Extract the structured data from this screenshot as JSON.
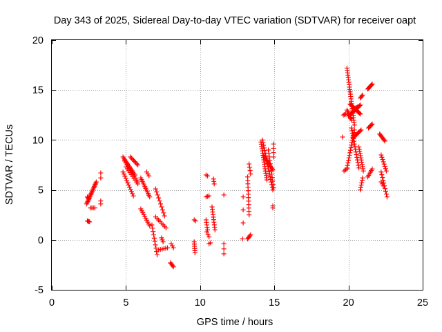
{
  "chart_data": {
    "type": "scatter",
    "title": "Day 343 of 2025, Sidereal Day-to-day VTEC variation (SDTVAR) for receiver oapt",
    "xlabel": "GPS time / hours",
    "ylabel": "SDTVAR / TECUs",
    "xlim": [
      0,
      25
    ],
    "ylim": [
      -5,
      20
    ],
    "xticks": [
      0,
      5,
      10,
      15,
      20,
      25
    ],
    "yticks": [
      -5,
      0,
      5,
      10,
      15,
      20
    ],
    "xtick_labels": [
      "0",
      "5",
      "10",
      "15",
      "20",
      "25"
    ],
    "ytick_labels": [
      "-5",
      "0",
      "5",
      "10",
      "15",
      "20"
    ],
    "grid": true,
    "marker": "+",
    "color": "#ff0000",
    "series": [
      {
        "name": "SDTVAR",
        "segments": [
          {
            "from": [
              2.35,
              3.6
            ],
            "to": [
              3.0,
              5.8
            ],
            "count": 20
          },
          {
            "from": [
              2.4,
              4.3
            ],
            "to": [
              2.5,
              4.1
            ],
            "count": 4
          },
          {
            "from": [
              2.4,
              1.9
            ],
            "to": [
              2.55,
              1.8
            ],
            "count": 4
          },
          {
            "from": [
              2.6,
              3.2
            ],
            "to": [
              2.9,
              3.2
            ],
            "count": 4
          },
          {
            "from": [
              3.3,
              6.7
            ],
            "to": [
              3.3,
              6.2
            ],
            "count": 2
          },
          {
            "from": [
              3.3,
              3.9
            ],
            "to": [
              3.3,
              3.6
            ],
            "count": 2
          },
          {
            "from": [
              4.8,
              8.3
            ],
            "to": [
              5.6,
              6.5
            ],
            "count": 14
          },
          {
            "from": [
              4.8,
              6.8
            ],
            "to": [
              5.5,
              4.4
            ],
            "count": 12
          },
          {
            "from": [
              4.9,
              7.9
            ],
            "to": [
              5.8,
              5.8
            ],
            "count": 12
          },
          {
            "from": [
              5.0,
              7.3
            ],
            "to": [
              5.8,
              5.6
            ],
            "count": 10
          },
          {
            "from": [
              5.3,
              8.3
            ],
            "to": [
              5.8,
              7.5
            ],
            "count": 8
          },
          {
            "from": [
              6.0,
              6.2
            ],
            "to": [
              6.6,
              4.3
            ],
            "count": 12
          },
          {
            "from": [
              6.0,
              3.1
            ],
            "to": [
              6.6,
              1.4
            ],
            "count": 10
          },
          {
            "from": [
              6.4,
              6.8
            ],
            "to": [
              6.55,
              6.4
            ],
            "count": 3
          },
          {
            "from": [
              6.75,
              1.5
            ],
            "to": [
              7.1,
              -1.5
            ],
            "count": 10
          },
          {
            "from": [
              7.0,
              2.3
            ],
            "to": [
              7.7,
              1.2
            ],
            "count": 8
          },
          {
            "from": [
              7.0,
              5.1
            ],
            "to": [
              7.6,
              2.4
            ],
            "count": 10
          },
          {
            "from": [
              7.2,
              -1.0
            ],
            "to": [
              7.8,
              -0.8
            ],
            "count": 6
          },
          {
            "from": [
              7.4,
              0.2
            ],
            "to": [
              7.5,
              -0.2
            ],
            "count": 3
          },
          {
            "from": [
              8.0,
              -2.3
            ],
            "to": [
              8.2,
              -2.7
            ],
            "count": 5
          },
          {
            "from": [
              8.05,
              -0.4
            ],
            "to": [
              8.2,
              -0.8
            ],
            "count": 3
          },
          {
            "from": [
              9.6,
              2.0
            ],
            "to": [
              9.7,
              1.9
            ],
            "count": 2
          },
          {
            "from": [
              9.6,
              -0.2
            ],
            "to": [
              9.65,
              -1.3
            ],
            "count": 6
          },
          {
            "from": [
              10.4,
              6.5
            ],
            "to": [
              10.5,
              6.4
            ],
            "count": 2
          },
          {
            "from": [
              10.4,
              4.3
            ],
            "to": [
              10.6,
              4.4
            ],
            "count": 3
          },
          {
            "from": [
              10.4,
              2.0
            ],
            "to": [
              10.5,
              1.0
            ],
            "count": 5
          },
          {
            "from": [
              10.45,
              0.8
            ],
            "to": [
              10.6,
              0.3
            ],
            "count": 3
          },
          {
            "from": [
              10.6,
              -0.4
            ],
            "to": [
              10.7,
              -0.3
            ],
            "count": 2
          },
          {
            "from": [
              10.8,
              3.3
            ],
            "to": [
              11.0,
              1.0
            ],
            "count": 10
          },
          {
            "from": [
              10.9,
              6.1
            ],
            "to": [
              10.95,
              5.6
            ],
            "count": 3
          },
          {
            "from": [
              11.6,
              4.5
            ],
            "to": [
              11.6,
              4.5
            ],
            "count": 1
          },
          {
            "from": [
              11.6,
              -0.4
            ],
            "to": [
              11.6,
              -1.4
            ],
            "count": 3
          },
          {
            "from": [
              12.9,
              4.3
            ],
            "to": [
              12.9,
              4.3
            ],
            "count": 1
          },
          {
            "from": [
              12.9,
              3.0
            ],
            "to": [
              12.9,
              3.0
            ],
            "count": 1
          },
          {
            "from": [
              12.85,
              0.1
            ],
            "to": [
              12.85,
              0.1
            ],
            "count": 1
          },
          {
            "from": [
              12.9,
              1.7
            ],
            "to": [
              12.9,
              1.7
            ],
            "count": 1
          },
          {
            "from": [
              13.2,
              6.3
            ],
            "to": [
              13.3,
              2.5
            ],
            "count": 12
          },
          {
            "from": [
              13.2,
              0.1
            ],
            "to": [
              13.4,
              0.5
            ],
            "count": 5
          },
          {
            "from": [
              13.3,
              7.6
            ],
            "to": [
              13.4,
              6.6
            ],
            "count": 4
          },
          {
            "from": [
              14.1,
              9.8
            ],
            "to": [
              14.5,
              6.0
            ],
            "count": 18
          },
          {
            "from": [
              14.2,
              10.0
            ],
            "to": [
              14.9,
              5.0
            ],
            "count": 20
          },
          {
            "from": [
              14.3,
              8.4
            ],
            "to": [
              14.9,
              7.0
            ],
            "count": 12
          },
          {
            "from": [
              14.6,
              9.0
            ],
            "to": [
              14.95,
              5.2
            ],
            "count": 12
          },
          {
            "from": [
              14.95,
              9.6
            ],
            "to": [
              14.95,
              8.3
            ],
            "count": 4
          },
          {
            "from": [
              14.9,
              3.4
            ],
            "to": [
              14.9,
              3.2
            ],
            "count": 2
          },
          {
            "from": [
              19.65,
              12.5
            ],
            "to": [
              19.8,
              12.6
            ],
            "count": 3
          },
          {
            "from": [
              19.6,
              10.3
            ],
            "to": [
              19.6,
              10.3
            ],
            "count": 1
          },
          {
            "from": [
              19.7,
              6.9
            ],
            "to": [
              19.9,
              7.1
            ],
            "count": 3
          },
          {
            "from": [
              19.9,
              17.2
            ],
            "to": [
              20.4,
              11.5
            ],
            "count": 25
          },
          {
            "from": [
              19.9,
              7.2
            ],
            "to": [
              20.4,
              11.0
            ],
            "count": 16
          },
          {
            "from": [
              19.9,
              13.0
            ],
            "to": [
              20.2,
              12.0
            ],
            "count": 8
          },
          {
            "from": [
              20.0,
              12.4
            ],
            "to": [
              20.8,
              13.5
            ],
            "count": 16
          },
          {
            "from": [
              20.1,
              13.6
            ],
            "to": [
              20.8,
              12.6
            ],
            "count": 14
          },
          {
            "from": [
              20.2,
              11.2
            ],
            "to": [
              20.7,
              7.2
            ],
            "count": 16
          },
          {
            "from": [
              20.3,
              10.2
            ],
            "to": [
              20.85,
              11.0
            ],
            "count": 10
          },
          {
            "from": [
              20.3,
              13.1
            ],
            "to": [
              20.6,
              13.3
            ],
            "count": 5
          },
          {
            "from": [
              20.8,
              14.2
            ],
            "to": [
              20.95,
              14.5
            ],
            "count": 4
          },
          {
            "from": [
              20.7,
              9.3
            ],
            "to": [
              21.0,
              6.9
            ],
            "count": 12
          },
          {
            "from": [
              20.8,
              5.0
            ],
            "to": [
              20.95,
              6.2
            ],
            "count": 6
          },
          {
            "from": [
              21.3,
              15.1
            ],
            "to": [
              21.6,
              15.6
            ],
            "count": 8
          },
          {
            "from": [
              21.35,
              11.2
            ],
            "to": [
              21.6,
              11.6
            ],
            "count": 6
          },
          {
            "from": [
              21.3,
              6.3
            ],
            "to": [
              21.6,
              7.1
            ],
            "count": 6
          },
          {
            "from": [
              22.1,
              10.6
            ],
            "to": [
              22.45,
              9.9
            ],
            "count": 8
          },
          {
            "from": [
              22.2,
              8.5
            ],
            "to": [
              22.55,
              6.9
            ],
            "count": 8
          },
          {
            "from": [
              22.2,
              6.8
            ],
            "to": [
              22.6,
              4.3
            ],
            "count": 10
          },
          {
            "from": [
              22.2,
              5.8
            ],
            "to": [
              22.35,
              5.4
            ],
            "count": 3
          }
        ]
      }
    ]
  }
}
